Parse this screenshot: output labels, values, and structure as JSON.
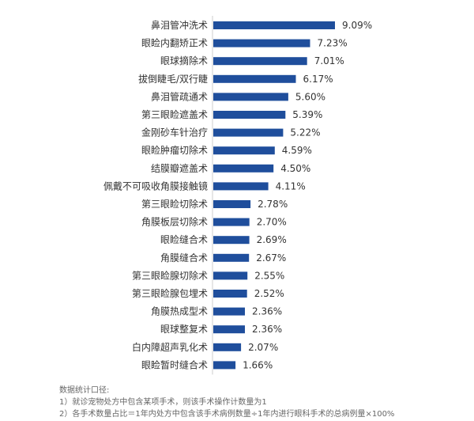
{
  "chart_data": {
    "type": "bar",
    "orientation": "horizontal",
    "categories": [
      "鼻泪管冲洗术",
      "眼睑内翻矫正术",
      "眼球摘除术",
      "拔倒睫毛/双行睫",
      "鼻泪管疏通术",
      "第三眼睑遮盖术",
      "金刚砂车针治疗",
      "眼睑肿瘤切除术",
      "结膜瓣遮盖术",
      "佩戴不可吸收角膜接触镜",
      "第三眼睑切除术",
      "角膜板层切除术",
      "眼睑缝合术",
      "角膜缝合术",
      "第三眼睑腺切除术",
      "第三眼睑腺包埋术",
      "角膜热成型术",
      "眼球整复术",
      "白内障超声乳化术",
      "眼睑暂时缝合术"
    ],
    "values": [
      9.09,
      7.23,
      7.01,
      6.17,
      5.6,
      5.39,
      5.22,
      4.59,
      4.5,
      4.11,
      2.78,
      2.7,
      2.69,
      2.67,
      2.55,
      2.52,
      2.36,
      2.36,
      2.07,
      1.66
    ],
    "value_labels": [
      "9.09%",
      "7.23%",
      "7.01%",
      "6.17%",
      "5.60%",
      "5.39%",
      "5.22%",
      "4.59%",
      "4.50%",
      "4.11%",
      "2.78%",
      "2.70%",
      "2.69%",
      "2.67%",
      "2.55%",
      "2.52%",
      "2.36%",
      "2.36%",
      "2.07%",
      "1.66%"
    ],
    "bar_color": "#1f4e9c",
    "grid": false,
    "legend": "none"
  },
  "notes": {
    "heading": "数据统计口径:",
    "line1": "1）就诊宠物处方中包含某项手术，则该手术操作计数量为1",
    "line2": "2）各手术数量占比＝1年内处方中包含该手术病例数量÷1年内进行眼科手术的总病例量×100%"
  }
}
